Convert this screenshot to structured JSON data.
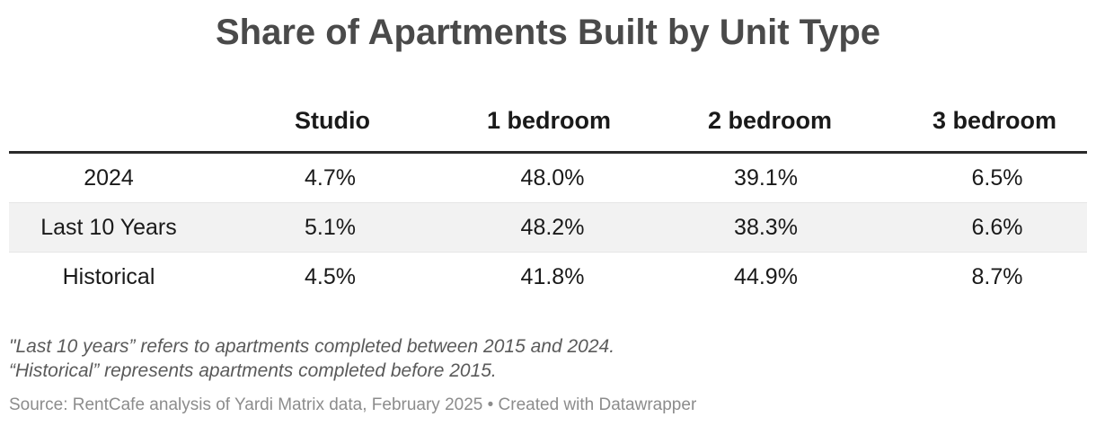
{
  "chart_data": {
    "type": "table",
    "title": "Share of Apartments Built by Unit Type",
    "columns": [
      "Studio",
      "1 bedroom",
      "2 bedroom",
      "3 bedroom"
    ],
    "rows": [
      {
        "label": "2024",
        "values": [
          "4.7%",
          "48.0%",
          "39.1%",
          "6.5%"
        ]
      },
      {
        "label": "Last 10 Years",
        "values": [
          "5.1%",
          "48.2%",
          "38.3%",
          "6.6%"
        ]
      },
      {
        "label": "Historical",
        "values": [
          "4.5%",
          "41.8%",
          "44.9%",
          "8.7%"
        ]
      }
    ]
  },
  "notes": [
    "\"Last 10 years” refers to apartments completed between 2015 and 2024.",
    "“Historical” represents apartments completed before 2015."
  ],
  "source": "Source: RentCafe analysis of Yardi Matrix data, February 2025 • Created with Datawrapper",
  "colors": {
    "title": "#4a4a4a",
    "header_rule": "#2a2a2a",
    "shaded_row": "#f2f2f2",
    "notes": "#5a5a5a",
    "source": "#8c8c8c"
  }
}
